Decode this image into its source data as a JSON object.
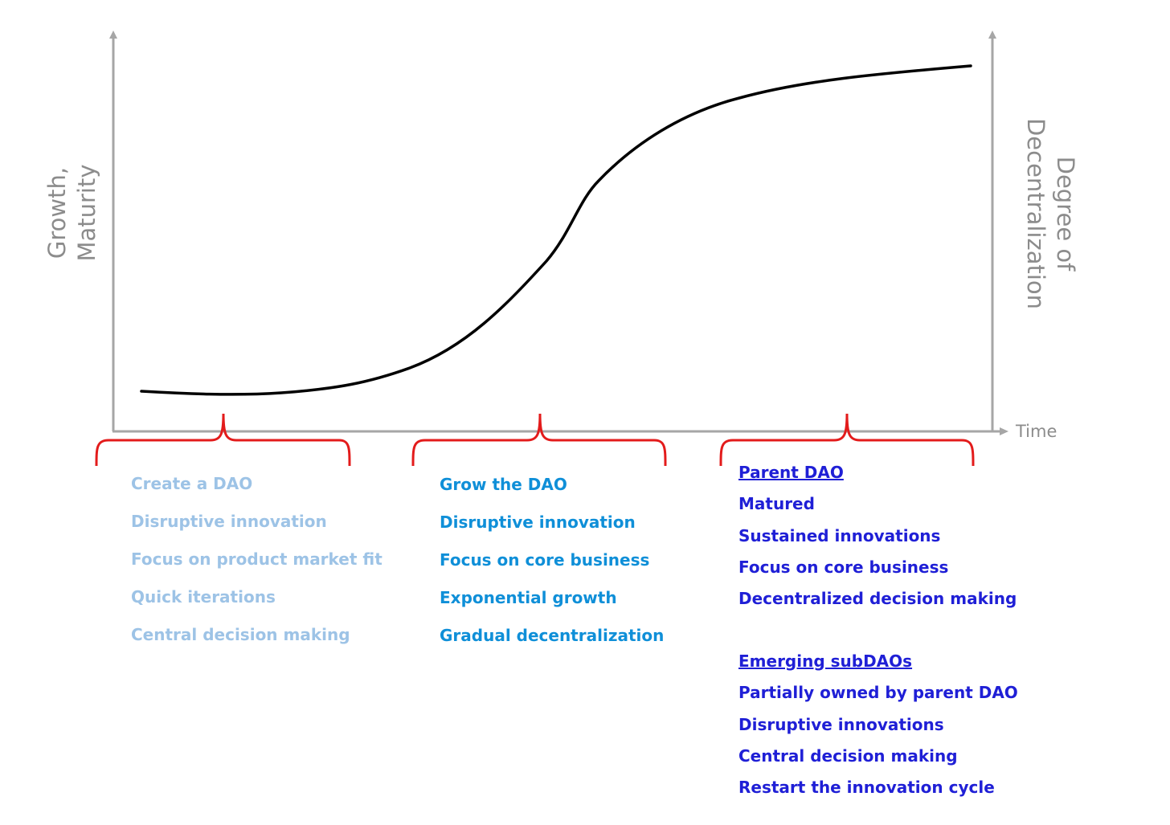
{
  "axes": {
    "y_left_label": [
      "Growth,",
      "Maturity"
    ],
    "y_right_label": [
      "Degree of",
      "Decentralization"
    ],
    "x_label": "Time"
  },
  "colors": {
    "axis": "#a6a6a6",
    "axis_label": "#8c8c8c",
    "curve": "#000000",
    "bracket": "#e31b1b",
    "phase_1_text": "#9dc3e6",
    "phase_2_text": "#0f8fd8",
    "phase_3_text": "#1f1fd6"
  },
  "curve": {
    "shape": "s-curve",
    "description_points": [
      {
        "time": 0.0,
        "level": 0.05
      },
      {
        "time": 0.12,
        "level": 0.04
      },
      {
        "time": 0.3,
        "level": 0.09
      },
      {
        "time": 0.5,
        "level": 0.45
      },
      {
        "time": 0.62,
        "level": 0.68
      },
      {
        "time": 0.75,
        "level": 0.83
      },
      {
        "time": 1.0,
        "level": 0.9
      }
    ]
  },
  "phases": [
    {
      "id": "phase-1",
      "items": [
        "Create a DAO",
        "Disruptive innovation",
        "Focus on product market fit",
        "Quick iterations",
        "Central decision making"
      ]
    },
    {
      "id": "phase-2",
      "items": [
        "Grow the DAO",
        "Disruptive innovation",
        "Focus on core business",
        "Exponential growth",
        "Gradual decentralization"
      ]
    },
    {
      "id": "phase-3",
      "parent": {
        "title": "Parent DAO",
        "items": [
          "Matured",
          "Sustained innovations",
          "Focus on core business",
          "Decentralized decision making"
        ]
      },
      "sub": {
        "title": "Emerging subDAOs",
        "items": [
          "Partially owned by parent DAO",
          "Disruptive innovations",
          "Central decision making",
          "Restart the innovation cycle"
        ]
      }
    }
  ]
}
